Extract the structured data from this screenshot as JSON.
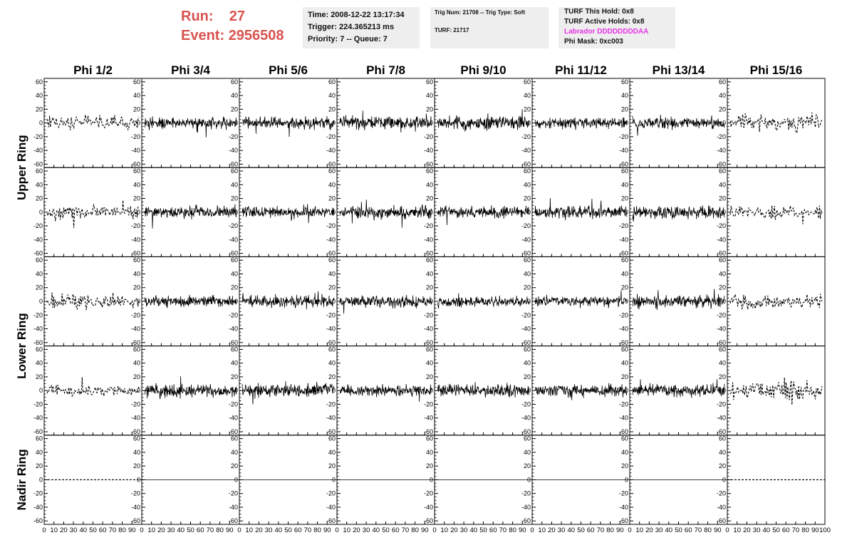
{
  "header": {
    "run_label": "Run:",
    "run_value": "27",
    "event_label": "Event:",
    "event_value": "2956508",
    "title_color": "#d9534f",
    "time_box": {
      "time": "Time: 2008-12-22 13:17:34",
      "trigger": "Trigger: 224.365213 ms",
      "priority": "Priority: 7 -- Queue: 7"
    },
    "trig_box": {
      "trig_num": "Trig Num: 21708 -- Trig Type: Soft",
      "turf": "TURF: 21717"
    },
    "turf_box": {
      "this_hold": "TURF This Hold: 0x8",
      "active_holds": "TURF Active Holds: 0x8",
      "labrador": "Labrador DDDDDDDDAA",
      "labrador_color": "#e633e6",
      "phi_mask": "Phi Mask: 0xc003"
    }
  },
  "chart_data": {
    "type": "line",
    "columns": [
      "Phi 1/2",
      "Phi 3/4",
      "Phi 5/6",
      "Phi 7/8",
      "Phi 9/10",
      "Phi 11/12",
      "Phi 13/14",
      "Phi 15/16"
    ],
    "rings": [
      "Upper Ring",
      "Lower Ring",
      "Nadir Ring"
    ],
    "rows_per_ring": [
      2,
      2,
      1
    ],
    "xlim": [
      0,
      100
    ],
    "ylim": [
      -65,
      65
    ],
    "y_ticks": [
      "60",
      "40",
      "20",
      "0",
      "-20",
      "-40",
      "-60"
    ],
    "y_tick_values": [
      60,
      40,
      20,
      0,
      -20,
      -40,
      -60
    ],
    "x_tick_values": [
      0,
      10,
      20,
      30,
      40,
      50,
      60,
      70,
      80,
      90,
      100
    ],
    "x_tick_labels": [
      "0",
      "10",
      "20",
      "30",
      "40",
      "50",
      "60",
      "70",
      "80",
      "90",
      "100"
    ],
    "trace_style": {
      "dashed_columns": [
        0,
        7
      ],
      "nadir_trace": "flat at 0"
    },
    "trace_amplitude": [
      [
        14,
        12,
        12,
        14,
        15,
        11,
        12,
        18
      ],
      [
        14,
        12,
        12,
        13,
        12,
        12,
        13,
        15
      ],
      [
        16,
        12,
        12,
        12,
        11,
        11,
        13,
        14
      ],
      [
        12,
        14,
        14,
        12,
        13,
        13,
        13,
        22
      ],
      [
        0,
        0,
        0,
        0,
        0,
        0,
        0,
        0
      ]
    ]
  }
}
